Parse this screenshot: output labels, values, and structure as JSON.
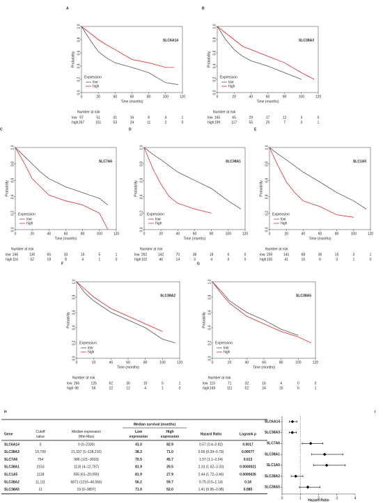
{
  "chart_data": [
    {
      "type": "line",
      "label": "A",
      "title": "SLC6A14",
      "ylabel": "Probability",
      "xlabel": "Time (months)",
      "legend_title": "Expression",
      "risk_title": "Number at risk",
      "xlim": [
        0,
        120
      ],
      "xticks": [
        0,
        20,
        40,
        60,
        80,
        100,
        120
      ],
      "ylim": [
        0,
        1
      ],
      "yticks": [
        {
          "value": 0,
          "label": "0.0"
        },
        {
          "value": 0.2,
          "label": "0.2"
        },
        {
          "value": 0.4,
          "label": "0.4"
        },
        {
          "value": 0.6,
          "label": "0.6"
        },
        {
          "value": 0.8,
          "label": "0.8"
        },
        {
          "value": 1,
          "label": "1.0"
        }
      ],
      "series": [
        {
          "name": "low",
          "color": "#555555",
          "x": [
            0,
            10,
            20,
            30,
            40,
            60,
            80,
            100,
            115
          ],
          "values": [
            1,
            0.8,
            0.62,
            0.52,
            0.45,
            0.38,
            0.3,
            0.15,
            0.12
          ],
          "at_risk": [
            97,
            51,
            31,
            16,
            8,
            4,
            1
          ]
        },
        {
          "name": "high",
          "color": "#e3262b",
          "x": [
            0,
            10,
            20,
            30,
            40,
            60,
            80,
            100,
            110
          ],
          "values": [
            1,
            0.9,
            0.8,
            0.72,
            0.65,
            0.5,
            0.45,
            0.38,
            0.38
          ],
          "at_risk": [
            267,
            151,
            53,
            24,
            11,
            2,
            0
          ]
        }
      ]
    },
    {
      "type": "line",
      "label": "B",
      "title": "SLC38A3",
      "ylabel": "Probability",
      "xlabel": "Time (months)",
      "legend_title": "Expression",
      "risk_title": "Number at risk",
      "xlim": [
        0,
        120
      ],
      "xticks": [
        0,
        20,
        40,
        60,
        80,
        100,
        120
      ],
      "ylim": [
        0,
        1
      ],
      "yticks": [
        {
          "value": 0,
          "label": "0.0"
        },
        {
          "value": 0.2,
          "label": "0.2"
        },
        {
          "value": 0.4,
          "label": "0.4"
        },
        {
          "value": 0.6,
          "label": "0.6"
        },
        {
          "value": 0.8,
          "label": "0.8"
        },
        {
          "value": 1,
          "label": "1.0"
        }
      ],
      "series": [
        {
          "name": "low",
          "color": "#555555",
          "x": [
            0,
            10,
            20,
            30,
            40,
            60,
            80,
            100
          ],
          "values": [
            1,
            0.8,
            0.65,
            0.55,
            0.48,
            0.4,
            0.3,
            0.2
          ],
          "at_risk": [
            165,
            65,
            29,
            17,
            12,
            3,
            0
          ]
        },
        {
          "name": "high",
          "color": "#e3262b",
          "x": [
            0,
            10,
            20,
            30,
            40,
            60,
            80,
            100,
            115
          ],
          "values": [
            1,
            0.9,
            0.8,
            0.7,
            0.65,
            0.55,
            0.45,
            0.3,
            0.2
          ],
          "at_risk": [
            199,
            117,
            55,
            25,
            7,
            3,
            1
          ]
        }
      ]
    },
    {
      "type": "line",
      "label": "C",
      "title": "SLC7A6",
      "ylabel": "Probability",
      "xlabel": "Time (months)",
      "legend_title": "Expression",
      "risk_title": "Number at risk",
      "xlim": [
        0,
        120
      ],
      "xticks": [
        0,
        20,
        40,
        60,
        80,
        100,
        120
      ],
      "ylim": [
        0,
        1
      ],
      "yticks": [
        {
          "value": 0,
          "label": "0.0"
        },
        {
          "value": 0.2,
          "label": "0.2"
        },
        {
          "value": 0.4,
          "label": "0.4"
        },
        {
          "value": 0.6,
          "label": "0.6"
        },
        {
          "value": 0.8,
          "label": "0.8"
        },
        {
          "value": 1,
          "label": "1.0"
        }
      ],
      "series": [
        {
          "name": "low",
          "color": "#555555",
          "x": [
            0,
            10,
            20,
            30,
            40,
            60,
            80,
            100,
            110
          ],
          "values": [
            1,
            0.9,
            0.8,
            0.7,
            0.62,
            0.52,
            0.45,
            0.38,
            0.3
          ],
          "at_risk": [
            246,
            130,
            65,
            33,
            15,
            5,
            1
          ]
        },
        {
          "name": "high",
          "color": "#e3262b",
          "x": [
            0,
            10,
            20,
            30,
            40,
            60,
            80,
            100,
            110
          ],
          "values": [
            1,
            0.82,
            0.62,
            0.52,
            0.42,
            0.35,
            0.3,
            0.2,
            0
          ],
          "at_risk": [
            116,
            52,
            18,
            8,
            4,
            1,
            0
          ]
        }
      ]
    },
    {
      "type": "line",
      "label": "D",
      "title": "SLC38A1",
      "ylabel": "Probability",
      "xlabel": "Time (months)",
      "legend_title": "Expression",
      "risk_title": "Number at risk",
      "xlim": [
        0,
        120
      ],
      "xticks": [
        0,
        20,
        40,
        60,
        80,
        100,
        120
      ],
      "ylim": [
        0,
        1
      ],
      "yticks": [
        {
          "value": 0,
          "label": "0.0"
        },
        {
          "value": 0.2,
          "label": "0.2"
        },
        {
          "value": 0.4,
          "label": "0.4"
        },
        {
          "value": 0.6,
          "label": "0.6"
        },
        {
          "value": 0.8,
          "label": "0.8"
        },
        {
          "value": 1,
          "label": "1.0"
        }
      ],
      "series": [
        {
          "name": "low",
          "color": "#555555",
          "x": [
            0,
            10,
            20,
            40,
            60,
            80,
            100,
            115
          ],
          "values": [
            1,
            0.92,
            0.85,
            0.7,
            0.6,
            0.5,
            0.35,
            0.25
          ],
          "at_risk": [
            262,
            142,
            70,
            38,
            18,
            6,
            0
          ]
        },
        {
          "name": "high",
          "color": "#e3262b",
          "x": [
            0,
            10,
            20,
            30,
            40,
            60,
            80
          ],
          "values": [
            1,
            0.75,
            0.55,
            0.4,
            0.32,
            0.25,
            0.2
          ],
          "at_risk": [
            102,
            40,
            14,
            3,
            4,
            0,
            0
          ]
        }
      ]
    },
    {
      "type": "line",
      "label": "E",
      "title": "SLC1A5",
      "ylabel": "Probability",
      "xlabel": "Time (months)",
      "legend_title": "Expression",
      "risk_title": "Number at risk",
      "xlim": [
        0,
        120
      ],
      "xticks": [
        0,
        20,
        40,
        60,
        80,
        100,
        120
      ],
      "ylim": [
        0,
        1
      ],
      "yticks": [
        {
          "value": 0,
          "label": "0.0"
        },
        {
          "value": 0.2,
          "label": "0.2"
        },
        {
          "value": 0.4,
          "label": "0.4"
        },
        {
          "value": 0.6,
          "label": "0.6"
        },
        {
          "value": 0.8,
          "label": "0.8"
        },
        {
          "value": 1,
          "label": "1.0"
        }
      ],
      "series": [
        {
          "name": "low",
          "color": "#555555",
          "x": [
            0,
            10,
            20,
            40,
            60,
            80,
            100,
            115
          ],
          "values": [
            1,
            0.92,
            0.85,
            0.7,
            0.58,
            0.45,
            0.35,
            0.25
          ],
          "at_risk": [
            259,
            141,
            68,
            36,
            15,
            3,
            1
          ]
        },
        {
          "name": "high",
          "color": "#e3262b",
          "x": [
            0,
            10,
            20,
            30,
            40,
            60,
            80,
            100
          ],
          "values": [
            1,
            0.78,
            0.58,
            0.45,
            0.35,
            0.28,
            0.18,
            0.15
          ],
          "at_risk": [
            105,
            41,
            16,
            6,
            3,
            1,
            0
          ]
        }
      ]
    },
    {
      "type": "line",
      "label": "F",
      "title": "SLC38A2",
      "ylabel": "Probability",
      "xlabel": "Time (months)",
      "legend_title": "Expression",
      "risk_title": "Number at risk",
      "xlim": [
        0,
        120
      ],
      "xticks": [
        0,
        20,
        40,
        60,
        80,
        100,
        120
      ],
      "ylim": [
        0,
        1
      ],
      "yticks": [
        {
          "value": 0,
          "label": "0.0"
        },
        {
          "value": 0.2,
          "label": "0.2"
        },
        {
          "value": 0.4,
          "label": "0.4"
        },
        {
          "value": 0.6,
          "label": "0.6"
        },
        {
          "value": 0.8,
          "label": "0.8"
        },
        {
          "value": 1,
          "label": "1.0"
        }
      ],
      "series": [
        {
          "name": "low",
          "color": "#555555",
          "x": [
            0,
            10,
            20,
            40,
            60,
            80,
            100,
            115
          ],
          "values": [
            1,
            0.85,
            0.75,
            0.6,
            0.5,
            0.4,
            0.25,
            0.2
          ],
          "at_risk": [
            266,
            126,
            62,
            30,
            15,
            5,
            1
          ]
        },
        {
          "name": "high",
          "color": "#e3262b",
          "x": [
            0,
            10,
            20,
            40,
            60,
            80,
            100
          ],
          "values": [
            1,
            0.9,
            0.8,
            0.65,
            0.55,
            0.45,
            0.35
          ],
          "at_risk": [
            98,
            56,
            22,
            12,
            4,
            1,
            0
          ]
        }
      ]
    },
    {
      "type": "line",
      "label": "G",
      "title": "SLC38A5",
      "ylabel": "Probability",
      "xlabel": "Time (months)",
      "legend_title": "Expression",
      "risk_title": "Number at risk",
      "xlim": [
        0,
        120
      ],
      "xticks": [
        0,
        20,
        40,
        60,
        80,
        100,
        120
      ],
      "ylim": [
        0,
        1
      ],
      "yticks": [
        {
          "value": 0,
          "label": "0.0"
        },
        {
          "value": 0.2,
          "label": "0.2"
        },
        {
          "value": 0.4,
          "label": "0.4"
        },
        {
          "value": 0.6,
          "label": "0.6"
        },
        {
          "value": 0.8,
          "label": "0.8"
        },
        {
          "value": 1,
          "label": "1.0"
        }
      ],
      "series": [
        {
          "name": "low",
          "color": "#555555",
          "x": [
            0,
            10,
            20,
            40,
            60,
            80,
            100
          ],
          "values": [
            1,
            0.88,
            0.75,
            0.6,
            0.5,
            0.38,
            0.3
          ],
          "at_risk": [
            115,
            71,
            32,
            16,
            4,
            0,
            0
          ]
        },
        {
          "name": "high",
          "color": "#e3262b",
          "x": [
            0,
            10,
            20,
            40,
            60,
            80,
            100,
            115
          ],
          "values": [
            1,
            0.85,
            0.72,
            0.55,
            0.45,
            0.35,
            0.28,
            0.2
          ],
          "at_risk": [
            249,
            111,
            52,
            24,
            15,
            6,
            1
          ]
        }
      ]
    },
    {
      "type": "forest",
      "label": "I",
      "xlabel": "Hazard Ratio",
      "categories": [
        "SLC6A14",
        "SLC38A3",
        "SLC7A6",
        "SLC38A1",
        "SLC1A5",
        "SLC38A2",
        "SLC38A5"
      ],
      "values": [
        0.57,
        0.56,
        1.57,
        2.33,
        2.44,
        0.75,
        1.41
      ],
      "ci_low": [
        0.4,
        0.39,
        1.1,
        1.62,
        1.72,
        0.5,
        0.95
      ],
      "ci_high": [
        0.82,
        0.79,
        2.24,
        3.33,
        3.46,
        1.14,
        2.08
      ],
      "xlim": [
        0,
        4
      ],
      "xticks": [
        0,
        1,
        2,
        3,
        4
      ],
      "reference_line": 1,
      "color": "#000000"
    }
  ],
  "table": {
    "label": "H",
    "group_header": "Median survival (months)",
    "header": [
      [
        "Gene"
      ],
      [
        "Cutoff",
        "value"
      ],
      [
        "Median expression",
        "(Min-Max)"
      ],
      [
        "Low",
        "expression"
      ],
      [
        "High",
        "expression"
      ],
      [
        "Hazard Ratio"
      ],
      [
        "Logrank p"
      ]
    ],
    "rows": [
      [
        "SLC6A14",
        "0",
        "0 (0–2330)",
        "41.0",
        "82.9",
        "0.57 (0.4–0.82)",
        "0.0017"
      ],
      [
        "SLC38A3",
        "19,700",
        "21,337 (1–128,210)",
        "38.3",
        "71.0",
        "0.56 (0.39–0.79)",
        "0.00077"
      ],
      [
        "SLC7A6",
        "754",
        "586 (121–3033)",
        "70.5",
        "45.7",
        "1.57 (1.1–2.24)",
        "0.013"
      ],
      [
        "SLC38A1",
        "2153",
        "1116 (4–12,757)",
        "81.9",
        "25.5",
        "2.33 (1.62–3.33)",
        "0.0000021"
      ],
      [
        "SLC1A5",
        "1138",
        "595 (61–20,090)",
        "81.9",
        "27.9",
        "2.44 (1.72–3.46)",
        "0.0000026"
      ],
      [
        "SLC38A2",
        "11,111",
        "6871 (1216–46,566)",
        "56.2",
        "59.7",
        "0.75 (0.5–1.14)",
        "0.18"
      ],
      [
        "SLC38A5",
        "11",
        "19 (0–3837)",
        "71.0",
        "52.0",
        "1.41 (0.95–2.08)",
        "0.085"
      ]
    ]
  }
}
